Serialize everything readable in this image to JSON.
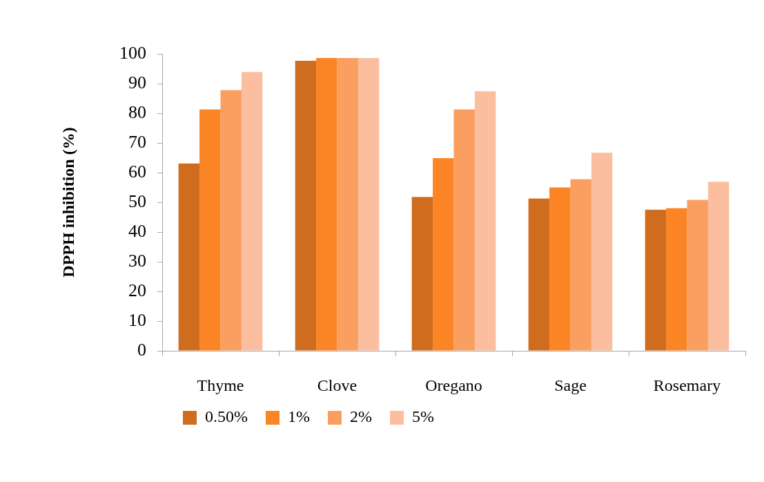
{
  "chart_data": {
    "type": "bar",
    "ylabel": "DPPH inhibition (%)",
    "categories": [
      "Thyme",
      "Clove",
      "Oregano",
      "Sage",
      "Rosemary"
    ],
    "series": [
      {
        "name": "0.50%",
        "color": "#d06c1e",
        "values": [
          63.1,
          97.7,
          51.8,
          51.3,
          47.5
        ]
      },
      {
        "name": "1%",
        "color": "#fb8525",
        "values": [
          81.3,
          98.6,
          64.9,
          55.0,
          48.0
        ]
      },
      {
        "name": "2%",
        "color": "#fb9f60",
        "values": [
          87.8,
          98.6,
          81.3,
          57.8,
          50.8
        ]
      },
      {
        "name": "5%",
        "color": "#fbbfa0",
        "values": [
          93.9,
          98.6,
          87.4,
          66.7,
          56.9
        ]
      }
    ],
    "ylim": [
      0,
      100
    ],
    "yticks": [
      0,
      10,
      20,
      30,
      40,
      50,
      60,
      70,
      80,
      90,
      100
    ],
    "grid": false,
    "legend": "bottom"
  }
}
